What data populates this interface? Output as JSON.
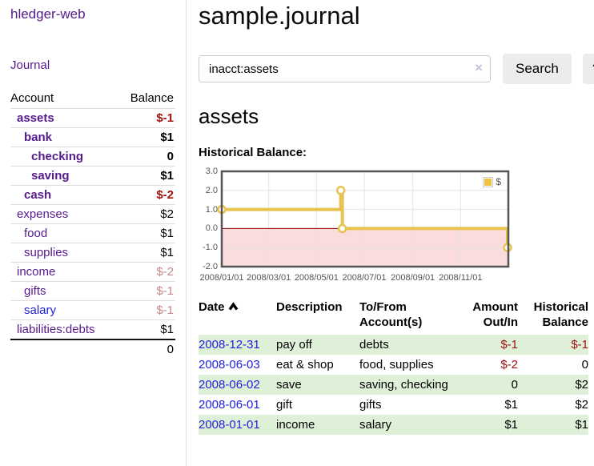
{
  "colors": {
    "link_purple": "#551a8b",
    "link_blue": "#2222dd",
    "negative_red": "#a01212",
    "faded_red": "#c28a8a",
    "row_green": "#dff0d8",
    "series_gold": "#e7c34f",
    "legend_gold": "#edc240"
  },
  "sidebar": {
    "app_title": "hledger-web",
    "journal_label": "Journal",
    "accounts_table": {
      "headers": {
        "account": "Account",
        "balance": "Balance"
      },
      "rows": [
        {
          "name": "assets",
          "indent": 0,
          "bold": true,
          "balance": "$-1",
          "neg": true
        },
        {
          "name": "bank",
          "indent": 1,
          "bold": true,
          "balance": "$1"
        },
        {
          "name": "checking",
          "indent": 2,
          "bold": true,
          "balance": "0"
        },
        {
          "name": "saving",
          "indent": 2,
          "bold": true,
          "balance": "$1"
        },
        {
          "name": "cash",
          "indent": 1,
          "bold": true,
          "balance": "$-2",
          "neg": true
        },
        {
          "name": "expenses",
          "indent": 0,
          "bold": false,
          "balance": "$2"
        },
        {
          "name": "food",
          "indent": 1,
          "bold": false,
          "balance": "$1"
        },
        {
          "name": "supplies",
          "indent": 1,
          "bold": false,
          "balance": "$1"
        },
        {
          "name": "income",
          "indent": 0,
          "bold": false,
          "balance": "$-2",
          "faded": true
        },
        {
          "name": "gifts",
          "indent": 1,
          "bold": false,
          "balance": "$-1",
          "faded": true
        },
        {
          "name": "salary",
          "indent": 1,
          "bold": false,
          "balance": "$-1",
          "faded": true,
          "blue": true
        },
        {
          "name": "liabilities:debts",
          "indent": 0,
          "bold": false,
          "balance": "$1"
        }
      ],
      "total": "0"
    }
  },
  "header": {
    "title": "sample.journal"
  },
  "search": {
    "value": "inacct:assets",
    "clear_icon": "×",
    "search_label": "Search",
    "help_label": "?"
  },
  "main": {
    "account_heading": "assets",
    "chart_label": "Historical Balance:"
  },
  "chart_data": {
    "type": "line",
    "step": true,
    "title": "Historical Balance:",
    "legend": "$",
    "legend_position": "top-right",
    "grid": true,
    "ylim": [
      -2,
      3
    ],
    "y_ticks": [
      3,
      2,
      1,
      0,
      -1,
      -2
    ],
    "x_range": [
      "2008-01-01",
      "2009-01-01"
    ],
    "x_ticks": [
      {
        "pos": "2008-01-01",
        "label": "2008/01/01"
      },
      {
        "pos": "2008-03-01",
        "label": "2008/03/01"
      },
      {
        "pos": "2008-05-01",
        "label": "2008/05/01"
      },
      {
        "pos": "2008-07-01",
        "label": "2008/07/01"
      },
      {
        "pos": "2008-09-01",
        "label": "2008/09/01"
      },
      {
        "pos": "2008-11-01",
        "label": "2008/11/01"
      }
    ],
    "series": [
      {
        "name": "$",
        "color": "#e7c34f",
        "points": [
          [
            "2008-01-01",
            1
          ],
          [
            "2008-06-01",
            2
          ],
          [
            "2008-06-03",
            0
          ],
          [
            "2008-12-31",
            -1
          ]
        ]
      }
    ],
    "negative_fill": "#fbdcdc",
    "zero_line_color": "#8b0000",
    "grid_color": "#e4e4e4",
    "border_color": "#545454"
  },
  "register": {
    "headers": {
      "date": "Date",
      "sort_icon": "chevron-up",
      "description": "Description",
      "accounts": "To/From Account(s)",
      "amount": "Amount Out/In",
      "balance": "Historical Balance"
    },
    "rows": [
      {
        "date": "2008-12-31",
        "description": "pay off",
        "accounts": "debts",
        "amount": "$-1",
        "balance": "$-1",
        "shaded": true
      },
      {
        "date": "2008-06-03",
        "description": "eat & shop",
        "accounts": "food, supplies",
        "amount": "$-2",
        "balance": "0",
        "shaded": false
      },
      {
        "date": "2008-06-02",
        "description": "save",
        "accounts": "saving, checking",
        "amount": "0",
        "balance": "$2",
        "shaded": true
      },
      {
        "date": "2008-06-01",
        "description": "gift",
        "accounts": "gifts",
        "amount": "$1",
        "balance": "$2",
        "shaded": false
      },
      {
        "date": "2008-01-01",
        "description": "income",
        "accounts": "salary",
        "amount": "$1",
        "balance": "$1",
        "shaded": true
      }
    ]
  }
}
